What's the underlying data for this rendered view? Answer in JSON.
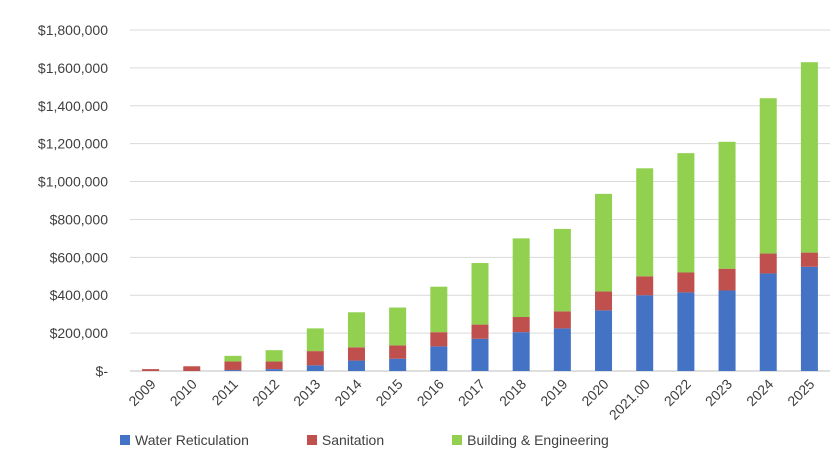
{
  "chart_data": {
    "type": "bar",
    "stacked": true,
    "categories": [
      "2009",
      "2010",
      "2011",
      "2012",
      "2013",
      "2014",
      "2015",
      "2016",
      "2017",
      "2018",
      "2019",
      "2020",
      "2021.00",
      "2022",
      "2023",
      "2024",
      "2025"
    ],
    "series": [
      {
        "name": "Water Reticulation",
        "color": "#4472c4",
        "values": [
          0,
          0,
          5000,
          10000,
          30000,
          55000,
          65000,
          130000,
          170000,
          205000,
          225000,
          320000,
          400000,
          415000,
          425000,
          515000,
          550000
        ]
      },
      {
        "name": "Sanitation",
        "color": "#c0504d",
        "values": [
          10000,
          25000,
          45000,
          40000,
          75000,
          70000,
          70000,
          75000,
          75000,
          80000,
          90000,
          100000,
          100000,
          105000,
          115000,
          105000,
          75000
        ]
      },
      {
        "name": "Building & Engineering",
        "color": "#92d050",
        "values": [
          0,
          0,
          30000,
          60000,
          120000,
          185000,
          200000,
          240000,
          325000,
          415000,
          435000,
          515000,
          570000,
          630000,
          670000,
          820000,
          1005000
        ]
      }
    ],
    "yticks": [
      "$-",
      "$200,000",
      "$400,000",
      "$600,000",
      "$800,000",
      "$1,000,000",
      "$1,200,000",
      "$1,400,000",
      "$1,600,000",
      "$1,800,000"
    ],
    "ylim": [
      0,
      1800000
    ],
    "grid": true,
    "legend_position": "bottom"
  },
  "colors": {
    "gridline": "#d9d9d9",
    "axis": "#bfbfbf"
  }
}
